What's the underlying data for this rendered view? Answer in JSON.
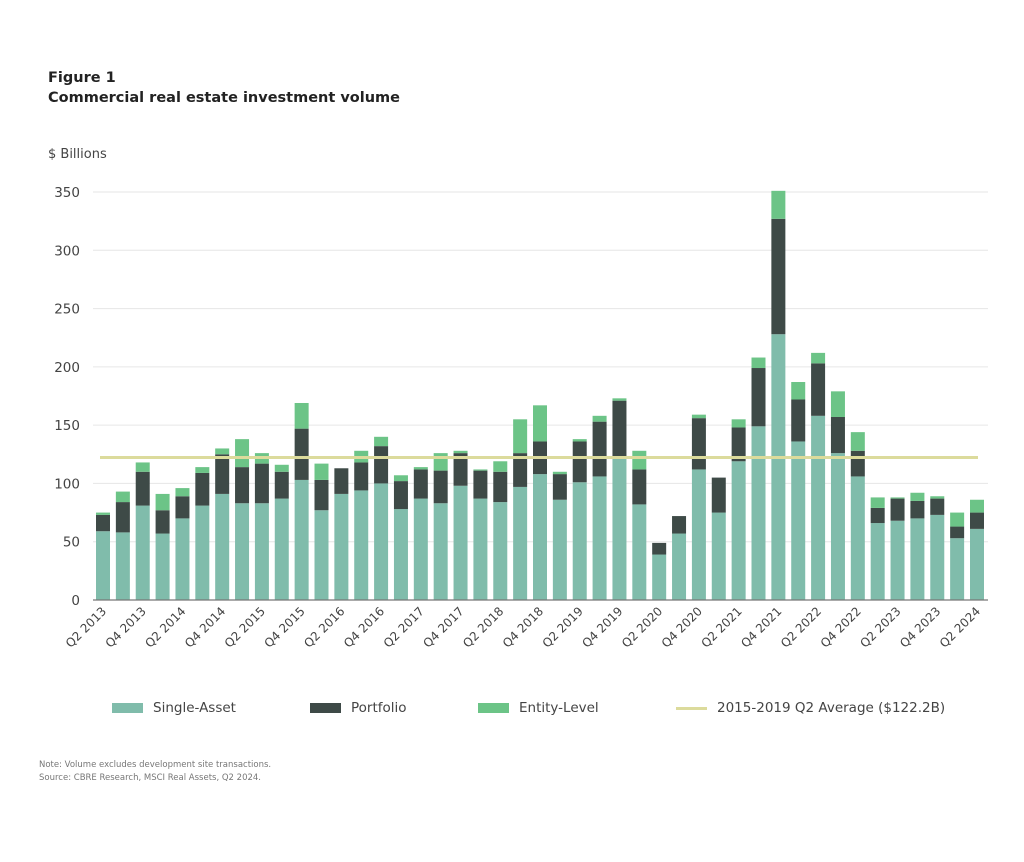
{
  "figure_label": "Figure 1",
  "title": "Commercial real estate investment volume",
  "note": "Note: Volume excludes development site transactions.",
  "source": "Source: CBRE Research, MSCI Real Assets, Q2 2024.",
  "chart_data": {
    "type": "bar",
    "stacked": true,
    "ylabel": "$ Billions",
    "ylim": [
      0,
      350
    ],
    "yticks": [
      0,
      50,
      100,
      150,
      200,
      250,
      300,
      350
    ],
    "grid": true,
    "legend_position": "bottom",
    "categories": [
      "Q2 2013",
      "Q3 2013",
      "Q4 2013",
      "Q1 2014",
      "Q2 2014",
      "Q3 2014",
      "Q4 2014",
      "Q1 2015",
      "Q2 2015",
      "Q3 2015",
      "Q4 2015",
      "Q1 2016",
      "Q2 2016",
      "Q3 2016",
      "Q4 2016",
      "Q1 2017",
      "Q2 2017",
      "Q3 2017",
      "Q4 2017",
      "Q1 2018",
      "Q2 2018",
      "Q3 2018",
      "Q4 2018",
      "Q1 2019",
      "Q2 2019",
      "Q3 2019",
      "Q4 2019",
      "Q1 2020",
      "Q2 2020",
      "Q3 2020",
      "Q4 2020",
      "Q1 2021",
      "Q2 2021",
      "Q3 2021",
      "Q4 2021",
      "Q1 2022",
      "Q2 2022",
      "Q3 2022",
      "Q4 2022",
      "Q1 2023",
      "Q2 2023",
      "Q3 2023",
      "Q4 2023",
      "Q1 2024",
      "Q2 2024"
    ],
    "xtick_labels": [
      "Q2 2013",
      "Q4 2013",
      "Q2 2014",
      "Q4 2014",
      "Q2 2015",
      "Q4 2015",
      "Q2 2016",
      "Q4 2016",
      "Q2 2017",
      "Q4 2017",
      "Q2 2018",
      "Q4 2018",
      "Q2 2019",
      "Q4 2019",
      "Q2 2020",
      "Q4 2020",
      "Q2 2021",
      "Q4 2021",
      "Q2 2022",
      "Q4 2022",
      "Q2 2023",
      "Q4 2023",
      "Q2 2024"
    ],
    "series": [
      {
        "name": "Single-Asset",
        "color": "#80bcab",
        "values": [
          59,
          58,
          81,
          57,
          70,
          81,
          91,
          83,
          83,
          87,
          103,
          77,
          91,
          94,
          100,
          78,
          87,
          83,
          98,
          87,
          84,
          97,
          108,
          86,
          101,
          106,
          121,
          82,
          39,
          57,
          112,
          75,
          119,
          149,
          228,
          136,
          158,
          126,
          106,
          66,
          68,
          70,
          73,
          53,
          61
        ]
      },
      {
        "name": "Portfolio",
        "color": "#3e4a47",
        "values": [
          14,
          26,
          29,
          20,
          19,
          28,
          34,
          31,
          34,
          23,
          44,
          26,
          22,
          24,
          32,
          24,
          25,
          28,
          28,
          24,
          26,
          29,
          28,
          22,
          35,
          47,
          50,
          30,
          10,
          15,
          44,
          30,
          29,
          50,
          99,
          36,
          45,
          31,
          22,
          13,
          19,
          15,
          14,
          10,
          14
        ]
      },
      {
        "name": "Entity-Level",
        "color": "#6cc487",
        "values": [
          2,
          9,
          8,
          14,
          7,
          5,
          5,
          24,
          9,
          6,
          22,
          14,
          0,
          10,
          8,
          5,
          2,
          15,
          2,
          1,
          9,
          29,
          31,
          2,
          2,
          5,
          2,
          16,
          0,
          0,
          3,
          0,
          7,
          9,
          24,
          15,
          9,
          22,
          16,
          9,
          1,
          7,
          2,
          12,
          11
        ]
      }
    ],
    "reference_line": {
      "name": "2015-2019 Q2 Average ($122.2B)",
      "value": 122.2,
      "color": "#dcdb9c"
    }
  }
}
